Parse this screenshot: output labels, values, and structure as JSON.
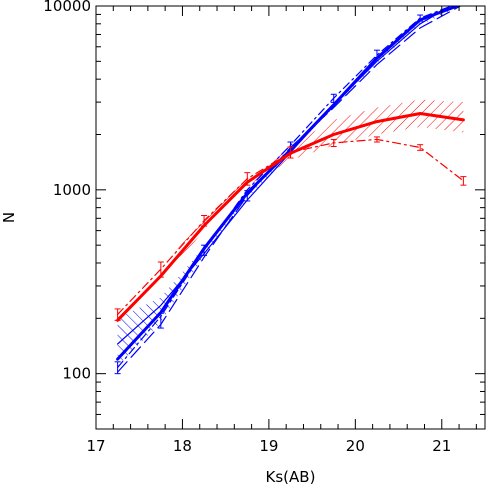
{
  "chart_data": {
    "type": "line",
    "title": "",
    "xlabel": "Ks(AB)",
    "ylabel": "N",
    "xlim": [
      17,
      21.5
    ],
    "ylim": [
      50,
      10000
    ],
    "yscale": "log",
    "grid": false,
    "legend": "none",
    "xticks": [
      17,
      18,
      19,
      20,
      21
    ],
    "xtick_labels": [
      "17",
      "18",
      "19",
      "20",
      "21"
    ],
    "yticks": [
      100,
      1000,
      10000
    ],
    "ytick_labels": [
      "100",
      "1000",
      "10000"
    ],
    "colors": {
      "blue": "#0000ff",
      "red": "#ff0000",
      "axes": "#000000"
    },
    "series": [
      {
        "color": "#0000ff",
        "style": "thick-solid",
        "x": [
          17.25,
          17.75,
          18.25,
          18.75,
          19.25,
          19.75,
          20.25,
          20.75,
          21.25
        ],
        "y": [
          120,
          215,
          480,
          960,
          1650,
          2900,
          5200,
          8400,
          10300
        ]
      },
      {
        "color": "#0000ff",
        "style": "thin-solid",
        "x": [
          17.25,
          17.75,
          18.25,
          18.75,
          19.25,
          19.75,
          20.25,
          20.75,
          21.25
        ],
        "y": [
          145,
          235,
          450,
          880,
          1600,
          2900,
          5000,
          8000,
          11000
        ]
      },
      {
        "color": "#0000ff",
        "style": "long-dash",
        "x": [
          17.25,
          17.75,
          18.25,
          18.75,
          19.25,
          19.75,
          20.25,
          20.75,
          21.25
        ],
        "y": [
          102,
          185,
          430,
          930,
          1700,
          2800,
          4800,
          7600,
          10200
        ]
      },
      {
        "color": "#0000ff",
        "style": "dash-dot",
        "x": [
          17.25,
          17.75,
          18.25,
          18.75,
          19.25,
          19.75,
          20.25,
          20.75,
          21.25
        ],
        "y": [
          108,
          205,
          470,
          1000,
          1750,
          3150,
          5400,
          8600,
          10600
        ]
      },
      {
        "color": "#0000ff",
        "style": "errorbars",
        "x": [
          17.25,
          17.75,
          18.25,
          18.75,
          19.25,
          19.75,
          20.25,
          20.75,
          21.25
        ],
        "y": [
          108,
          195,
          470,
          930,
          1720,
          3150,
          5500,
          8600,
          10500
        ],
        "err_lo": [
          8,
          18,
          30,
          60,
          100,
          160,
          250,
          330,
          400
        ],
        "err_hi": [
          8,
          18,
          30,
          60,
          100,
          160,
          250,
          330,
          400
        ]
      },
      {
        "color": "#ff0000",
        "style": "thick-solid",
        "x": [
          17.25,
          17.75,
          18.25,
          18.75,
          19.25,
          19.75,
          20.25,
          20.75,
          21.25
        ],
        "y": [
          195,
          340,
          640,
          1100,
          1580,
          2000,
          2350,
          2600,
          2400
        ]
      },
      {
        "color": "#ff0000",
        "style": "dash-dot",
        "x": [
          17.25,
          17.75,
          18.25,
          18.75,
          19.25,
          19.75,
          20.25,
          20.75,
          21.25
        ],
        "y": [
          210,
          370,
          680,
          1150,
          1600,
          1800,
          1880,
          1700,
          1120
        ]
      },
      {
        "color": "#ff0000",
        "style": "errorbars",
        "x": [
          17.25,
          17.75,
          18.25,
          18.75,
          19.25,
          19.75,
          20.25,
          20.75,
          21.25
        ],
        "y": [
          210,
          370,
          680,
          1150,
          1600,
          1800,
          1880,
          1700,
          1120
        ],
        "err_lo": [
          15,
          35,
          45,
          90,
          110,
          80,
          60,
          60,
          60
        ],
        "err_hi": [
          15,
          35,
          45,
          90,
          110,
          80,
          60,
          60,
          60
        ]
      }
    ],
    "bands": [
      {
        "color": "#0000ff",
        "fill": "hatched",
        "x": [
          17.25,
          17.75,
          18.25,
          18.75,
          19.25,
          19.75,
          20.25,
          20.75,
          21.25
        ],
        "lower": [
          110,
          190,
          440,
          900,
          1600,
          2800,
          4900,
          7900,
          10000
        ],
        "upper": [
          200,
          260,
          490,
          930,
          1650,
          2950,
          5200,
          8500,
          11000
        ]
      },
      {
        "color": "#ff0000",
        "fill": "hatched",
        "x": [
          17.25,
          17.75,
          18.25,
          18.75,
          19.25,
          19.75,
          20.25,
          20.75,
          21.25
        ],
        "lower": [
          185,
          320,
          600,
          1050,
          1450,
          1750,
          2000,
          2200,
          2050
        ],
        "upper": [
          215,
          380,
          690,
          1150,
          1750,
          2400,
          2800,
          3100,
          3000
        ]
      }
    ]
  }
}
